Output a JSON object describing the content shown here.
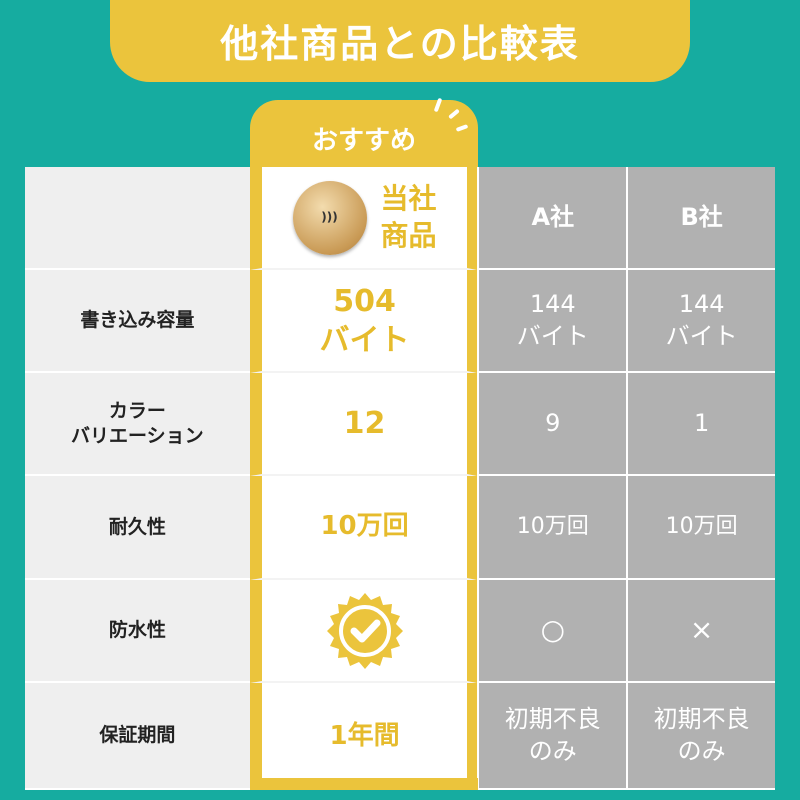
{
  "title": "他社商品との比較表",
  "recommend_label": "おすすめ",
  "colors": {
    "background": "#16aca0",
    "accent": "#ebc43c",
    "competitor_cell": "#b1b1b1",
    "label_cell": "#efefef"
  },
  "header": {
    "ours": "当社\n商品",
    "a": "A社",
    "b": "B社",
    "product_icon": "nfc-coin-icon"
  },
  "rows": [
    {
      "label": "書き込み容量",
      "ours": "504\nバイト",
      "a": "144\nバイト",
      "b": "144\nバイト"
    },
    {
      "label": "カラー\nバリエーション",
      "ours": "12",
      "a": "9",
      "b": "1"
    },
    {
      "label": "耐久性",
      "ours": "10万回",
      "a": "10万回",
      "b": "10万回"
    },
    {
      "label": "防水性",
      "ours_icon": "check-badge-icon",
      "a": "○",
      "b": "×"
    },
    {
      "label": "保証期間",
      "ours": "1年間",
      "a": "初期不良\nのみ",
      "b": "初期不良\nのみ"
    }
  ]
}
